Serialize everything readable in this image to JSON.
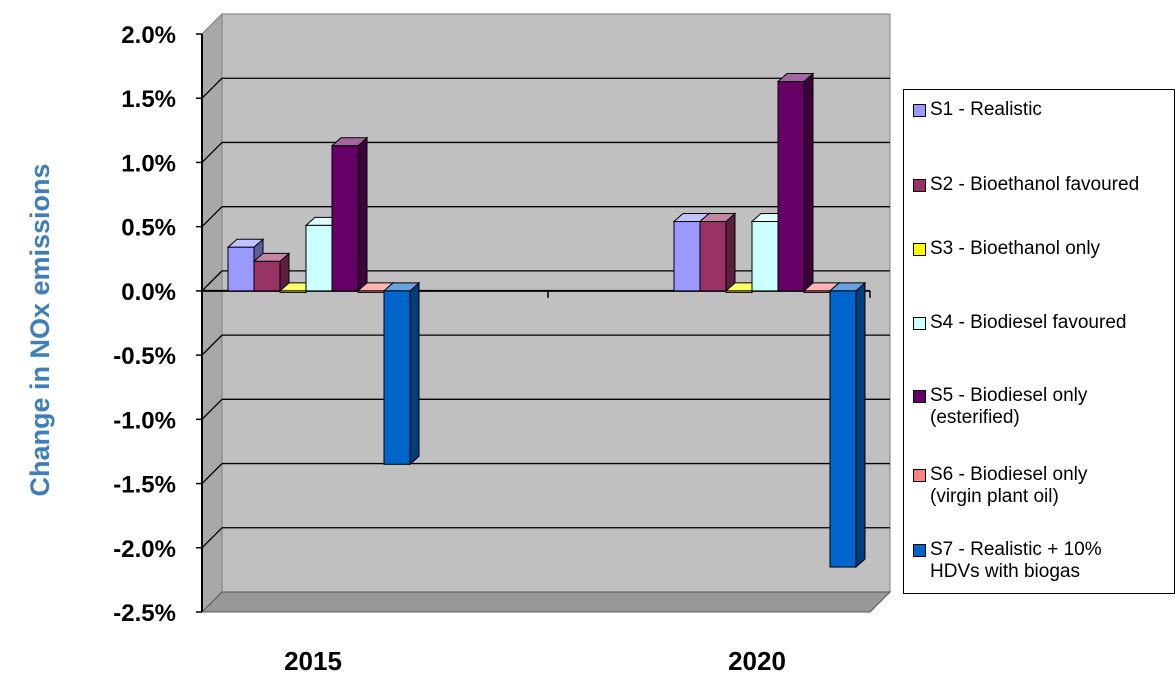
{
  "chart_data": {
    "type": "bar",
    "style": "3d-clustered-column",
    "ylabel": "Change in NOx emissions",
    "xlabel": "",
    "categories": [
      "2015",
      "2020"
    ],
    "ylim": [
      -0.025,
      0.02
    ],
    "yticks": [
      0.02,
      0.015,
      0.01,
      0.005,
      0.0,
      -0.005,
      -0.01,
      -0.015,
      -0.02,
      -0.025
    ],
    "ytick_labels": [
      "2.0%",
      "1.5%",
      "1.0%",
      "0.5%",
      "0.0%",
      "-0.5%",
      "-1.0%",
      "-1.5%",
      "-2.0%",
      "-2.5%"
    ],
    "grid": true,
    "legend_position": "right",
    "series": [
      {
        "name": "S1 - Realistic",
        "color": "#9999FF",
        "values": [
          0.0034,
          0.0054
        ]
      },
      {
        "name": "S2 - Bioethanol favoured",
        "color": "#993366",
        "values": [
          0.0023,
          0.0054
        ]
      },
      {
        "name": "S3 - Bioethanol only",
        "color": "#FFFF00",
        "values": [
          0.0,
          0.0
        ]
      },
      {
        "name": "S4 - Biodiesel favoured",
        "color": "#CCFFFF",
        "values": [
          0.0051,
          0.0054
        ]
      },
      {
        "name": "S5 - Biodiesel only\n(esterified)",
        "color": "#660066",
        "values": [
          0.0113,
          0.0163
        ]
      },
      {
        "name": "S6 - Biodiesel only\n(virgin plant oil)",
        "color": "#FF8080",
        "values": [
          0.0,
          0.0
        ]
      },
      {
        "name": "S7 - Realistic + 10%\nHDVs with biogas",
        "color": "#0066CC",
        "values": [
          -0.0135,
          -0.0215
        ]
      }
    ]
  }
}
